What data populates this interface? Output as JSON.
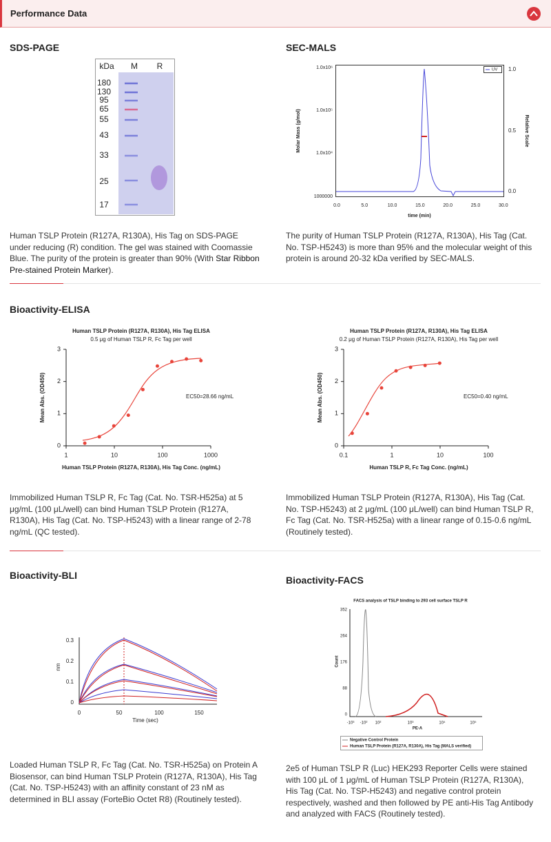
{
  "header": {
    "title": "Performance Data"
  },
  "sds_page": {
    "title": "SDS-PAGE",
    "col_labels": [
      "kDa",
      "M",
      "R"
    ],
    "markers": [
      "180",
      "130",
      "95",
      "65",
      "55",
      "43",
      "33",
      "25",
      "17"
    ],
    "caption": "Human TSLP Protein (R127A, R130A), His Tag on SDS-PAGE under reducing (R) condition. The gel was stained with Coomassie Blue. The purity of the protein is greater than 90% (With ",
    "caption_link": "Star Ribbon Pre-stained Protein Marker",
    "caption_end": ")."
  },
  "sec_mals": {
    "title": "SEC-MALS",
    "y_label": "Molar Mass (g/mol)",
    "y2_label": "Relative Scale",
    "x_label": "time (min)",
    "legend": "UV",
    "yticks": [
      "1.0x10⁶",
      "1.0x10⁵",
      "1.0x10⁴",
      "1000000"
    ],
    "y2ticks": [
      "1.0",
      "0.5",
      "0.0"
    ],
    "xticks": [
      "0.0",
      "5.0",
      "10.0",
      "15.0",
      "20.0",
      "25.0",
      "30.0"
    ],
    "caption": "The purity of Human TSLP Protein (R127A, R130A), His Tag (Cat. No. TSP-H5243) is more than 95% and the molecular weight of this protein is around 20-32 kDa verified by SEC-MALS."
  },
  "elisa_title": "Bioactivity-ELISA",
  "elisa_1": {
    "title": "Human TSLP Protein (R127A, R130A), His Tag ELISA",
    "subtitle": "0.5 μg of Human TSLP R, Fc Tag per well",
    "y_label": "Mean Abs. (OD450)",
    "x_label": "Human TSLP Protein (R127A, R130A), His Tag Conc. (ng/mL)",
    "annotation": "EC50=28.66 ng/mL",
    "x": [
      2.44,
      4.88,
      9.77,
      19.5,
      39.1,
      78.1,
      156,
      313,
      625
    ],
    "values": [
      0.08,
      0.28,
      0.62,
      0.95,
      1.75,
      2.48,
      2.62,
      2.7,
      2.65
    ],
    "color": "#e8443a",
    "log_x": true,
    "xlim": [
      1,
      1000
    ],
    "ylim": [
      0,
      3
    ],
    "xticks": [
      1,
      10,
      100,
      1000
    ],
    "yticks": [
      0,
      1,
      2,
      3
    ],
    "caption": "Immobilized Human TSLP R, Fc Tag (Cat. No. TSR-H525a) at 5 μg/mL (100 μL/well) can bind Human TSLP Protein (R127A, R130A), His Tag (Cat. No. TSP-H5243) with a linear range of 2-78 ng/mL (QC tested)."
  },
  "elisa_2": {
    "title": "Human TSLP Protein (R127A, R130A), His Tag ELISA",
    "subtitle": "0.2 μg of Human TSLP Protein (R127A, R130A), His Tag per well",
    "y_label": "Mean Abs. (OD450)",
    "x_label": "Human TSLP R, Fc Tag Conc. (ng/mL)",
    "annotation": "EC50=0.40 ng/mL",
    "x": [
      0.15,
      0.31,
      0.61,
      1.22,
      2.44,
      4.88,
      9.77
    ],
    "values": [
      0.39,
      1.0,
      1.8,
      2.33,
      2.44,
      2.5,
      2.57
    ],
    "color": "#e8443a",
    "log_x": true,
    "xlim": [
      0.1,
      100
    ],
    "ylim": [
      0,
      3
    ],
    "xticks": [
      0.1,
      1,
      10,
      100
    ],
    "yticks": [
      0,
      1,
      2,
      3
    ],
    "caption": "Immobilized Human TSLP Protein (R127A, R130A), His Tag (Cat. No. TSP-H5243) at 2 μg/mL (100 μL/well) can bind Human TSLP R, Fc Tag (Cat. No. TSR-H525a) with a linear range of 0.15-0.6 ng/mL (Routinely tested)."
  },
  "bli": {
    "title": "Bioactivity-BLI",
    "y_label": "nm",
    "x_label": "Time (sec)",
    "yticks": [
      "0.3",
      "0.2",
      "0.1",
      "0"
    ],
    "xticks": [
      "0",
      "50",
      "100",
      "150"
    ],
    "caption": "Loaded Human TSLP R, Fc Tag (Cat. No. TSR-H525a) on Protein A Biosensor, can bind Human TSLP Protein (R127A, R130A), His Tag (Cat. No. TSP-H5243) with an affinity constant of 23 nM as determined in BLI assay (ForteBio Octet R8) (Routinely tested)."
  },
  "facs": {
    "title": "Bioactivity-FACS",
    "chart_title": "FACS analysis of  TSLP binding to 293 cell surface TSLP R",
    "y_label": "Count",
    "x_label": "PE-A",
    "yticks": [
      "352",
      "264",
      "176",
      "88",
      "0"
    ],
    "xticks": [
      "-10³",
      "-10²",
      "10²",
      "10³",
      "10⁴",
      "10⁵"
    ],
    "legend": [
      "Negative Control Protein",
      "Human TSLP Protein (R127A, R130A), His Tag (MALS verified)"
    ],
    "caption": "2e5 of Human TSLP R (Luc) HEK293 Reporter Cells were stained with 100 μL of 1 μg/mL of Human TSLP Protein (R127A, R130A), His Tag (Cat. No. TSP-H5243) and negative control protein respectively, washed and then followed by PE anti-His Tag Antibody and analyzed with FACS (Routinely tested)."
  }
}
